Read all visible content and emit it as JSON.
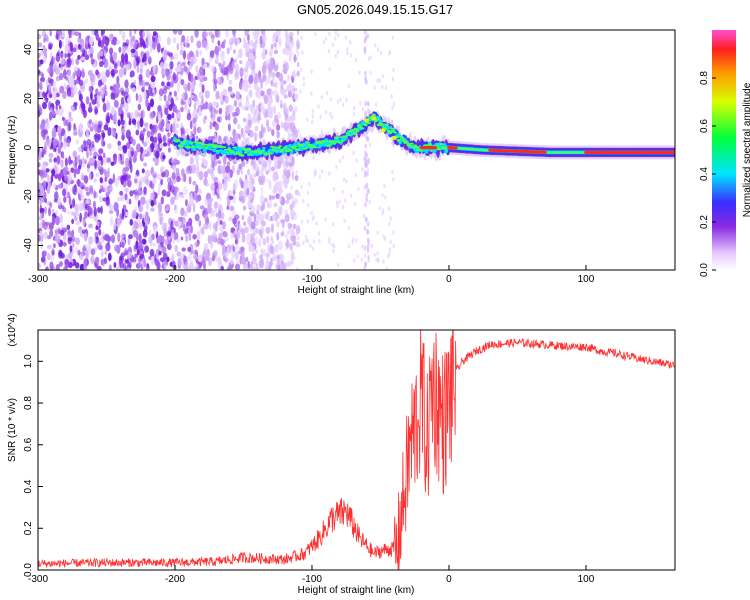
{
  "title": "GN05.2026.049.15.15.G17",
  "chart_data": [
    {
      "type": "heatmap",
      "xlabel": "Height of straight line (km)",
      "ylabel": "Frequency (Hz)",
      "xlim": [
        -300,
        165
      ],
      "ylim": [
        -50,
        48
      ],
      "xticks": [
        "-300",
        "-200",
        "-100",
        "0",
        "100"
      ],
      "yticks": [
        "-40",
        "-20",
        "0",
        "20",
        "40"
      ],
      "colorbar": {
        "label": "Normalized spectral amplitude",
        "range": [
          0,
          1
        ],
        "ticks": [
          "0.0",
          "0.2",
          "0.4",
          "0.6",
          "0.8"
        ],
        "colormap": [
          "#ffffff",
          "#e6c8ff",
          "#8a2be2",
          "#3b2bff",
          "#00e5ff",
          "#00ff3c",
          "#d8ff00",
          "#ff9a00",
          "#ff1e1e",
          "#ff4fd8"
        ]
      },
      "ridge": {
        "x": [
          -200,
          -175,
          -150,
          -125,
          -100,
          -80,
          -65,
          -55,
          -45,
          -35,
          -25,
          -15,
          -5,
          0,
          25,
          75,
          100,
          165
        ],
        "y": [
          2,
          0,
          -2,
          -1,
          1,
          3,
          8,
          12,
          8,
          3,
          0,
          0,
          0,
          0,
          -1,
          -2,
          -2,
          -2
        ]
      },
      "noise_region": [
        -300,
        -120
      ]
    },
    {
      "type": "line",
      "xlabel": "Height of straight line (km)",
      "ylabel": "SNR (10 * v/v)",
      "multiplier": "(x10^4)",
      "xlim": [
        -300,
        165
      ],
      "ylim": [
        0,
        1.15
      ],
      "xticks": [
        "-300",
        "-200",
        "-100",
        "0",
        "100"
      ],
      "yticks": [
        "0.0",
        "0.2",
        "0.4",
        "0.6",
        "0.8",
        "1.0"
      ],
      "color": "#ff3030",
      "series": [
        {
          "x": [
            -300,
            -250,
            -200,
            -170,
            -150,
            -120,
            -105,
            -95,
            -85,
            -75,
            -65,
            -55,
            -45,
            -38,
            -32,
            -28,
            -24,
            -20,
            -16,
            -12,
            -8,
            -4,
            0,
            5,
            10,
            20,
            30,
            50,
            70,
            90,
            100,
            110,
            120,
            140,
            165
          ],
          "y": [
            0.03,
            0.035,
            0.035,
            0.04,
            0.06,
            0.05,
            0.08,
            0.15,
            0.25,
            0.28,
            0.15,
            0.08,
            0.1,
            0.1,
            0.4,
            0.6,
            0.7,
            0.85,
            0.6,
            0.9,
            0.8,
            0.7,
            0.8,
            0.95,
            1.0,
            1.05,
            1.08,
            1.09,
            1.08,
            1.07,
            1.07,
            1.05,
            1.04,
            1.01,
            0.98
          ]
        }
      ]
    }
  ]
}
